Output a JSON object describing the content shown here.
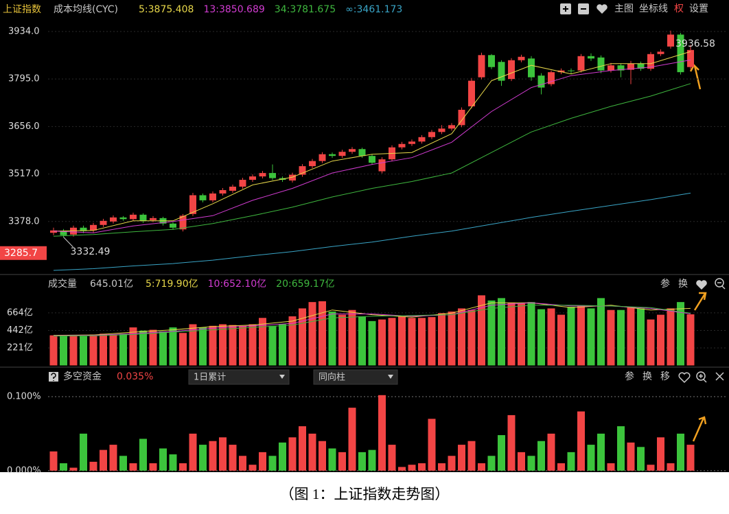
{
  "toolbar": [
    "主图",
    "坐标线",
    "权",
    "设置"
  ],
  "caption": "（图 1：上证指数走势图）",
  "chart_data": [
    {
      "type": "candlestick",
      "title": "上证指数",
      "subtitle": "成本均线(CYC)",
      "up_color": "#f24545",
      "down_color": "#3cc43c",
      "ylim": [
        3227,
        3970
      ],
      "yticks": [
        {
          "value": 3378,
          "label": "3378.0"
        },
        {
          "value": 3517,
          "label": "3517.0"
        },
        {
          "value": 3656,
          "label": "3656.0"
        },
        {
          "value": 3795,
          "label": "3795.0"
        },
        {
          "value": 3934,
          "label": "3934.0"
        }
      ],
      "cursor": 3285.7,
      "open": [
        3345,
        3350,
        3340,
        3360,
        3352,
        3368,
        3378,
        3390,
        3385,
        3398,
        3382,
        3388,
        3372,
        3355,
        3400,
        3455,
        3440,
        3460,
        3468,
        3480,
        3500,
        3510,
        3520,
        3505,
        3498,
        3515,
        3540,
        3555,
        3575,
        3570,
        3582,
        3590,
        3570,
        3525,
        3560,
        3595,
        3605,
        3612,
        3625,
        3640,
        3650,
        3660,
        3715,
        3800,
        3865,
        3845,
        3795,
        3850,
        3855,
        3805,
        3780,
        3815,
        3820,
        3820,
        3862,
        3858,
        3820,
        3835,
        3822,
        3840,
        3825,
        3868,
        3890,
        3925,
        3830
      ],
      "high": [
        3360,
        3356,
        3366,
        3366,
        3374,
        3386,
        3396,
        3394,
        3404,
        3402,
        3394,
        3392,
        3376,
        3400,
        3462,
        3460,
        3466,
        3476,
        3486,
        3506,
        3516,
        3526,
        3545,
        3510,
        3521,
        3546,
        3561,
        3581,
        3580,
        3588,
        3596,
        3594,
        3575,
        3566,
        3601,
        3611,
        3618,
        3631,
        3646,
        3660,
        3666,
        3712,
        3798,
        3872,
        3868,
        3850,
        3856,
        3866,
        3862,
        3812,
        3820,
        3826,
        3826,
        3868,
        3870,
        3864,
        3842,
        3840,
        3848,
        3846,
        3874,
        3882,
        3936.58,
        3930,
        3895
      ],
      "low": [
        3338,
        3332.49,
        3334,
        3344,
        3346,
        3362,
        3372,
        3380,
        3379,
        3374,
        3376,
        3366,
        3354,
        3349,
        3394,
        3434,
        3434,
        3454,
        3462,
        3474,
        3494,
        3504,
        3499,
        3494,
        3492,
        3509,
        3534,
        3549,
        3564,
        3564,
        3576,
        3564,
        3544,
        3519,
        3554,
        3589,
        3599,
        3606,
        3619,
        3634,
        3644,
        3654,
        3709,
        3794,
        3824,
        3775,
        3789,
        3844,
        3790,
        3750,
        3774,
        3809,
        3810,
        3814,
        3848,
        3812,
        3814,
        3800,
        3780,
        3819,
        3819,
        3862,
        3884,
        3808,
        3824
      ],
      "close": [
        3352,
        3338,
        3360,
        3350,
        3368,
        3380,
        3390,
        3385,
        3398,
        3380,
        3388,
        3372,
        3360,
        3395,
        3455,
        3440,
        3460,
        3470,
        3480,
        3500,
        3510,
        3520,
        3505,
        3500,
        3515,
        3540,
        3555,
        3575,
        3570,
        3582,
        3590,
        3570,
        3550,
        3560,
        3595,
        3605,
        3612,
        3625,
        3640,
        3650,
        3660,
        3705,
        3790,
        3865,
        3830,
        3790,
        3850,
        3860,
        3800,
        3770,
        3815,
        3820,
        3818,
        3862,
        3855,
        3820,
        3835,
        3820,
        3840,
        3825,
        3868,
        3875,
        3925,
        3815,
        3880
      ],
      "series": [
        {
          "name": "5:3875.408",
          "color": "#e8d84a",
          "x": [
            0,
            4,
            8,
            12,
            16,
            20,
            24,
            28,
            32,
            36,
            40,
            44,
            48,
            52,
            56,
            60,
            64
          ],
          "values": [
            3350,
            3352,
            3380,
            3380,
            3430,
            3485,
            3508,
            3555,
            3575,
            3580,
            3635,
            3790,
            3835,
            3810,
            3840,
            3840,
            3875.408
          ]
        },
        {
          "name": "13:3850.689",
          "color": "#d23cd2",
          "x": [
            0,
            4,
            8,
            12,
            16,
            20,
            24,
            28,
            32,
            36,
            40,
            44,
            48,
            52,
            56,
            60,
            64
          ],
          "values": [
            3350,
            3345,
            3365,
            3378,
            3395,
            3440,
            3475,
            3520,
            3545,
            3565,
            3610,
            3700,
            3770,
            3805,
            3820,
            3830,
            3850.689
          ]
        },
        {
          "name": "34:3781.675",
          "color": "#3fb83f",
          "x": [
            0,
            4,
            8,
            12,
            16,
            20,
            24,
            28,
            32,
            36,
            40,
            44,
            48,
            52,
            56,
            60,
            64
          ],
          "values": [
            3335,
            3340,
            3348,
            3355,
            3372,
            3395,
            3420,
            3450,
            3475,
            3495,
            3520,
            3580,
            3640,
            3680,
            3715,
            3745,
            3781.675
          ]
        },
        {
          "name": "∞:3461.173",
          "color": "#3aa6c8",
          "x": [
            0,
            4,
            8,
            12,
            16,
            20,
            24,
            28,
            32,
            36,
            40,
            44,
            48,
            52,
            56,
            60,
            64
          ],
          "values": [
            3235,
            3240,
            3248,
            3255,
            3265,
            3278,
            3290,
            3305,
            3318,
            3335,
            3350,
            3370,
            3390,
            3408,
            3425,
            3442,
            3461.173
          ]
        }
      ]
    },
    {
      "type": "bar",
      "title": "成交量",
      "current": "645.01亿",
      "tools": [
        "参",
        "换"
      ],
      "ylim": [
        0,
        888
      ],
      "yticks": [
        {
          "value": 221,
          "label": "221亿"
        },
        {
          "value": 442,
          "label": "442亿"
        },
        {
          "value": 664,
          "label": "664亿"
        }
      ],
      "values": [
        380,
        370,
        380,
        370,
        390,
        400,
        390,
        400,
        480,
        440,
        450,
        430,
        480,
        410,
        520,
        480,
        500,
        520,
        510,
        500,
        520,
        600,
        500,
        520,
        620,
        720,
        800,
        810,
        680,
        640,
        700,
        620,
        560,
        580,
        600,
        620,
        600,
        600,
        610,
        660,
        680,
        720,
        700,
        885,
        820,
        850,
        790,
        780,
        800,
        710,
        720,
        640,
        740,
        760,
        720,
        850,
        700,
        700,
        740,
        720,
        580,
        640,
        720,
        800,
        645.01
      ],
      "series": [
        {
          "name": "5:719.90亿",
          "color": "#e8d84a",
          "x": [
            0,
            4,
            8,
            12,
            16,
            20,
            24,
            28,
            32,
            36,
            40,
            44,
            48,
            52,
            56,
            60,
            64
          ],
          "values": [
            380,
            385,
            420,
            450,
            490,
            510,
            560,
            700,
            640,
            610,
            660,
            790,
            790,
            730,
            760,
            700,
            719.9
          ]
        },
        {
          "name": "10:652.10亿",
          "color": "#d23cd2",
          "x": [
            0,
            4,
            8,
            12,
            16,
            20,
            24,
            28,
            32,
            36,
            40,
            44,
            48,
            52,
            56,
            60,
            64
          ],
          "values": [
            375,
            380,
            400,
            430,
            470,
            500,
            530,
            650,
            650,
            620,
            640,
            760,
            790,
            750,
            750,
            720,
            652.1
          ]
        },
        {
          "name": "20:659.17亿",
          "color": "#3fb83f",
          "x": [
            0,
            4,
            8,
            12,
            16,
            20,
            24,
            28,
            32,
            36,
            40,
            44,
            48,
            52,
            56,
            60,
            64
          ],
          "values": [
            370,
            375,
            390,
            420,
            450,
            480,
            510,
            600,
            620,
            630,
            640,
            720,
            760,
            760,
            750,
            730,
            659.17
          ]
        }
      ]
    },
    {
      "type": "bar",
      "title": "多空资金",
      "current": "0.035%",
      "controls": [
        "1日累计",
        "同向柱"
      ],
      "tools": [
        "参",
        "换",
        "移"
      ],
      "ylim": [
        -0.002,
        0.112
      ],
      "yticks": [
        {
          "value": 0,
          "label": "0.000%"
        },
        {
          "value": 0.1,
          "label": "0.100%"
        }
      ],
      "values": [
        0.026,
        0.01,
        0.004,
        0.05,
        0.012,
        0.028,
        0.035,
        0.02,
        0.01,
        0.043,
        0.01,
        0.03,
        0.022,
        0.01,
        0.05,
        0.035,
        0.04,
        0.045,
        0.035,
        0.02,
        0.008,
        0.025,
        0.02,
        0.038,
        0.045,
        0.06,
        0.05,
        0.04,
        0.03,
        0.025,
        0.085,
        0.025,
        0.028,
        0.102,
        0.035,
        0.005,
        0.008,
        0.01,
        0.07,
        0.01,
        0.02,
        0.035,
        0.04,
        0.01,
        0.02,
        0.048,
        0.075,
        0.025,
        0.02,
        0.04,
        0.05,
        0.01,
        0.025,
        0.08,
        0.035,
        0.05,
        0.01,
        0.06,
        0.038,
        0.032,
        0.008,
        0.045,
        0.01,
        0.05,
        0.035
      ]
    }
  ]
}
